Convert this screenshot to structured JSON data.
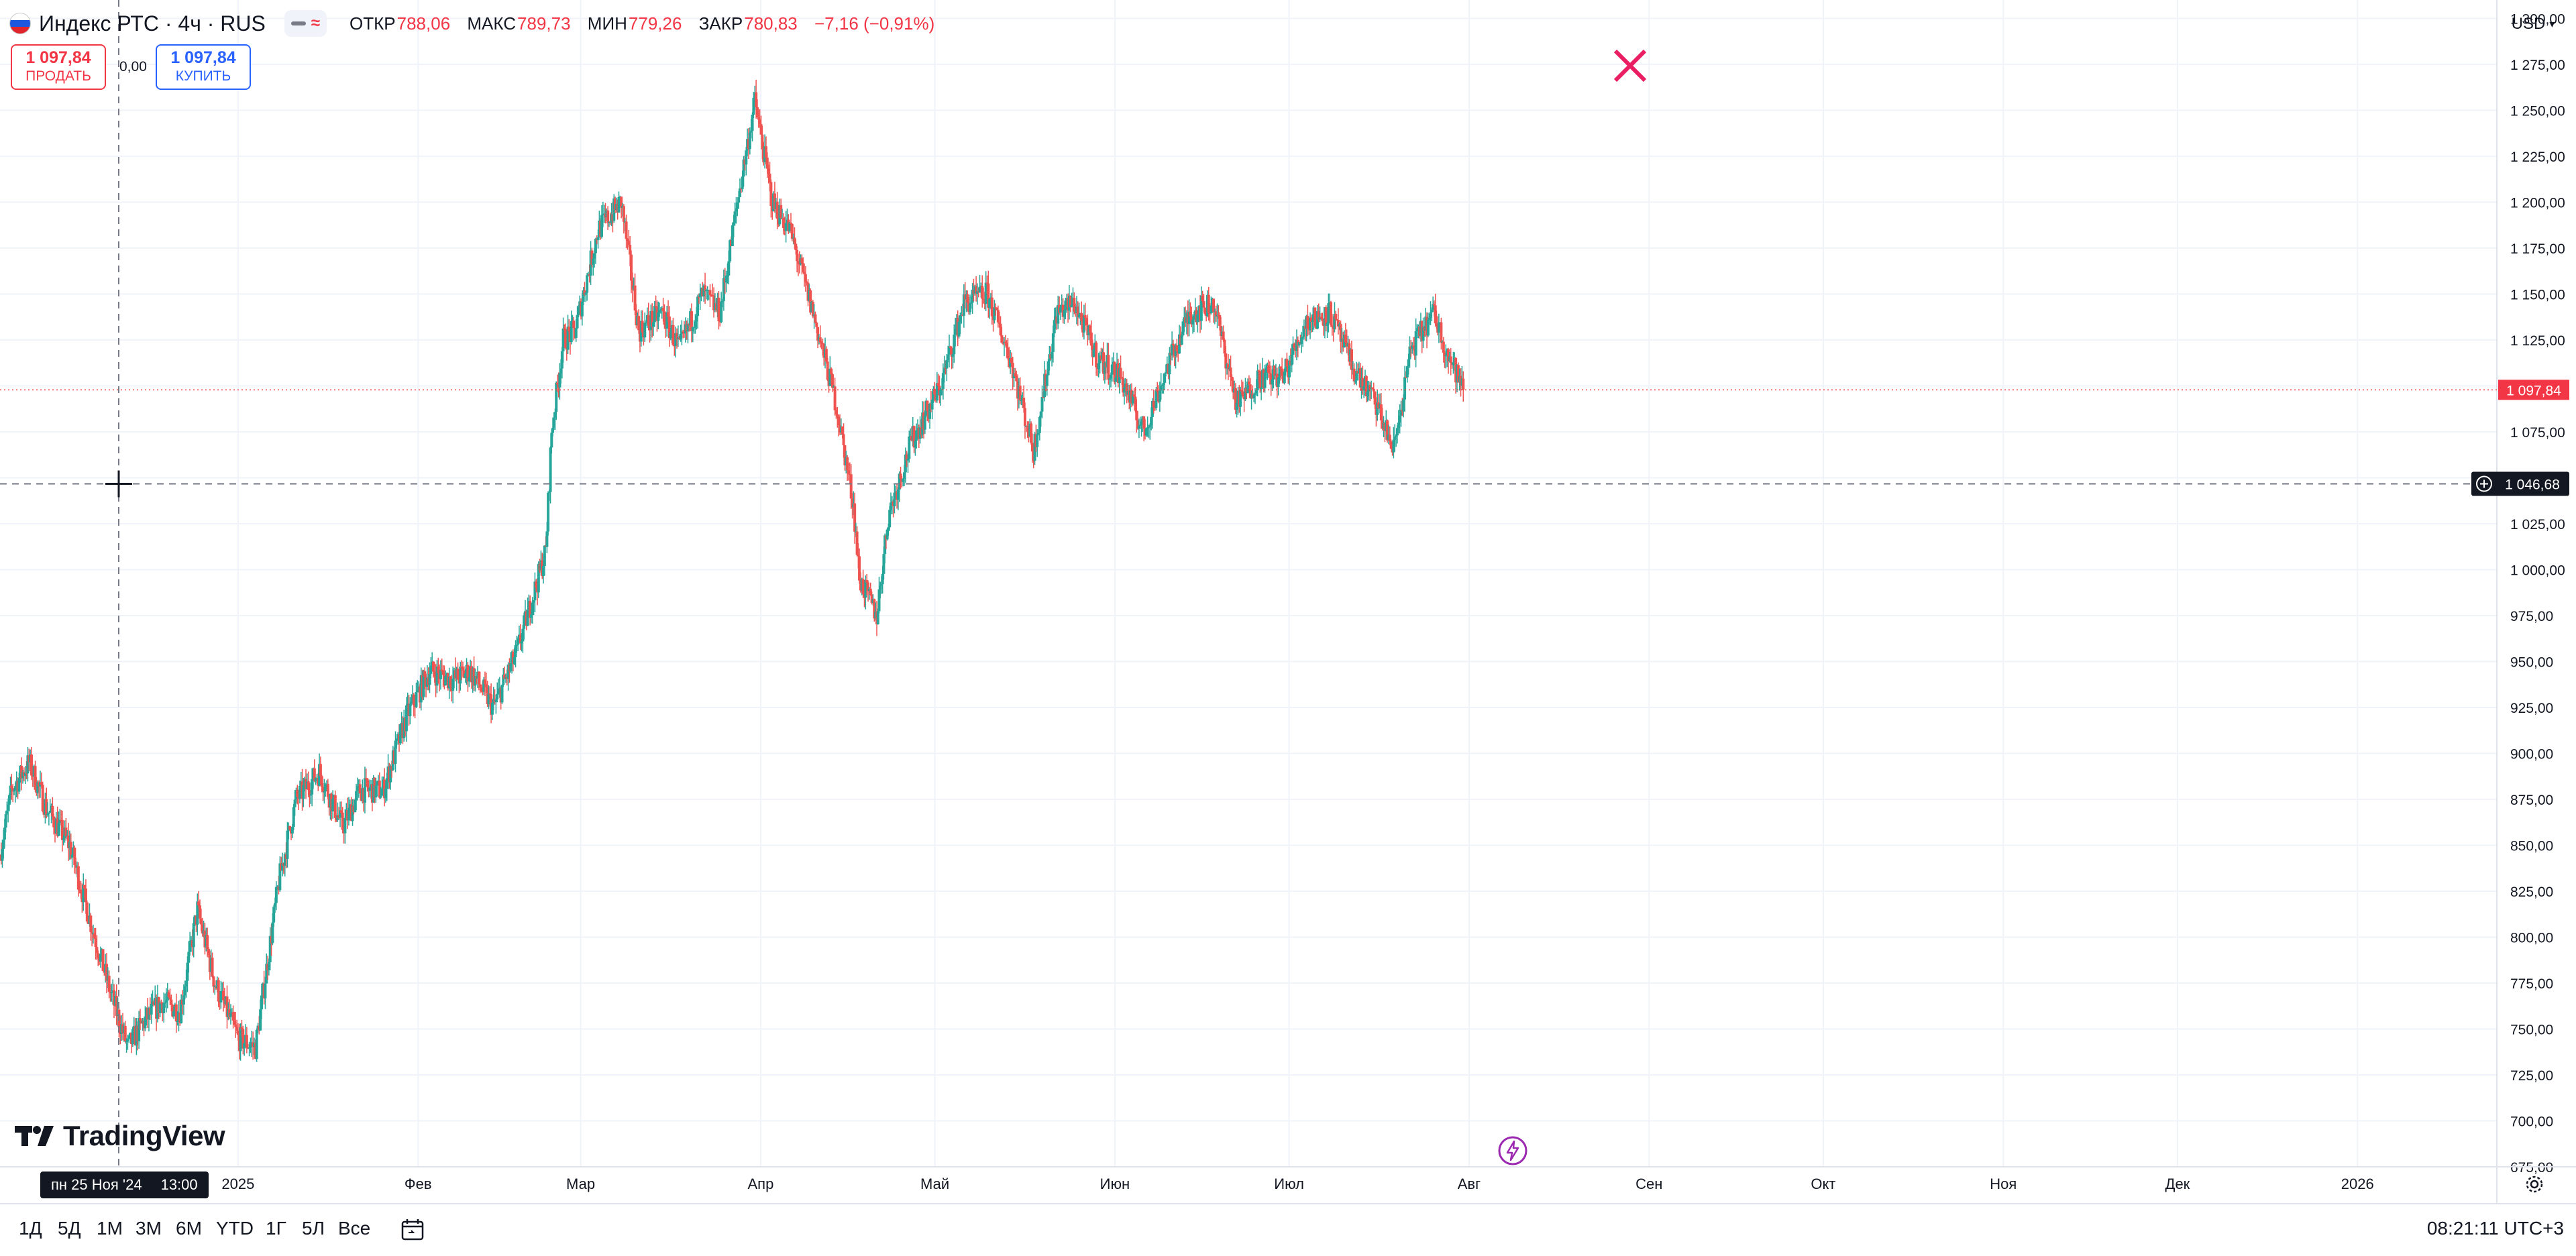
{
  "header": {
    "symbol": "Индекс РТС · 4ч · RUS",
    "flag_colors": [
      "#ffffff",
      "#1c57e0",
      "#e0262c"
    ],
    "indicator_icons": [
      "minus-icon",
      "approx-icon"
    ],
    "ohlc": [
      {
        "label": "ОТКР",
        "value": "788,06"
      },
      {
        "label": "МАКС",
        "value": "789,73"
      },
      {
        "label": "МИН",
        "value": "779,26"
      },
      {
        "label": "ЗАКР",
        "value": "780,83"
      }
    ],
    "change": "−7,16 (−0,91%)"
  },
  "trade": {
    "sell_price": "1 097,84",
    "sell_label": "ПРОДАТЬ",
    "spread": "0,00",
    "buy_price": "1 097,84",
    "buy_label": "КУПИТЬ"
  },
  "currency": "USD",
  "brand": "TradingView",
  "crosshair": {
    "date_label": "пн 25 Ноя '24",
    "time_label": "13:00",
    "price_label": "1 046,68",
    "price": 1046.68
  },
  "last_price": {
    "label": "1 097,84",
    "value": 1097.84
  },
  "toolbar": {
    "ranges": [
      "1Д",
      "5Д",
      "1М",
      "3М",
      "6М",
      "YTD",
      "1Г",
      "5Л",
      "Все"
    ],
    "clock": "08:21:11 UTC+3"
  },
  "colors": {
    "up": "#26a69a",
    "down": "#ef5350",
    "grid": "#f0f3fa",
    "text": "#131722",
    "last_price": "#f23645",
    "marker": "#e91e63",
    "event": "#9c27b0"
  },
  "chart_data": {
    "type": "candlestick",
    "ylim": [
      675,
      1310
    ],
    "y_ticks": [
      675,
      700,
      725,
      750,
      775,
      800,
      825,
      850,
      875,
      900,
      925,
      950,
      975,
      1000,
      1025,
      1050,
      1075,
      1100,
      1125,
      1150,
      1175,
      1200,
      1225,
      1250,
      1275,
      1300
    ],
    "y_tick_labels": [
      "675,00",
      "700,00",
      "725,00",
      "750,00",
      "775,00",
      "800,00",
      "825,00",
      "850,00",
      "875,00",
      "900,00",
      "925,00",
      "950,00",
      "975,00",
      "1 000,00",
      "1 025,00",
      "1 050,00",
      "1 075,00",
      "1 100,00",
      "1 125,00",
      "1 150,00",
      "1 175,00",
      "1 200,00",
      "1 225,00",
      "1 250,00",
      "1 275,00",
      "1 300,00"
    ],
    "x_range": [
      "2024-11-21",
      "2026-01-25"
    ],
    "x_ticks": [
      {
        "date": "2025-01-01",
        "label": "2025"
      },
      {
        "date": "2025-02-01",
        "label": "Фев"
      },
      {
        "date": "2025-03-01",
        "label": "Мар"
      },
      {
        "date": "2025-04-01",
        "label": "Апр"
      },
      {
        "date": "2025-05-01",
        "label": "Май"
      },
      {
        "date": "2025-06-01",
        "label": "Июн"
      },
      {
        "date": "2025-07-01",
        "label": "Июл"
      },
      {
        "date": "2025-08-01",
        "label": "Авг"
      },
      {
        "date": "2025-09-01",
        "label": "Сен"
      },
      {
        "date": "2025-10-01",
        "label": "Окт"
      },
      {
        "date": "2025-11-01",
        "label": "Ноя"
      },
      {
        "date": "2025-12-01",
        "label": "Дек"
      },
      {
        "date": "2026-01-01",
        "label": "2026"
      }
    ],
    "ohlc_anchors": [
      {
        "date": "2024-11-21",
        "close": 845
      },
      {
        "date": "2024-11-23",
        "close": 880
      },
      {
        "date": "2024-11-26",
        "close": 895
      },
      {
        "date": "2024-11-29",
        "close": 870
      },
      {
        "date": "2024-12-03",
        "close": 850
      },
      {
        "date": "2024-12-06",
        "close": 815
      },
      {
        "date": "2024-12-10",
        "close": 770
      },
      {
        "date": "2024-12-13",
        "close": 740
      },
      {
        "date": "2024-12-16",
        "close": 755
      },
      {
        "date": "2024-12-19",
        "close": 765
      },
      {
        "date": "2024-12-22",
        "close": 760
      },
      {
        "date": "2024-12-25",
        "close": 815
      },
      {
        "date": "2024-12-28",
        "close": 775
      },
      {
        "date": "2025-01-01",
        "close": 745
      },
      {
        "date": "2025-01-04",
        "close": 740
      },
      {
        "date": "2025-01-08",
        "close": 830
      },
      {
        "date": "2025-01-11",
        "close": 875
      },
      {
        "date": "2025-01-15",
        "close": 890
      },
      {
        "date": "2025-01-19",
        "close": 860
      },
      {
        "date": "2025-01-22",
        "close": 880
      },
      {
        "date": "2025-01-26",
        "close": 880
      },
      {
        "date": "2025-01-30",
        "close": 920
      },
      {
        "date": "2025-02-03",
        "close": 945
      },
      {
        "date": "2025-02-07",
        "close": 940
      },
      {
        "date": "2025-02-10",
        "close": 945
      },
      {
        "date": "2025-02-14",
        "close": 925
      },
      {
        "date": "2025-02-18",
        "close": 955
      },
      {
        "date": "2025-02-23",
        "close": 1010
      },
      {
        "date": "2025-02-24",
        "close": 1075
      },
      {
        "date": "2025-02-26",
        "close": 1125
      },
      {
        "date": "2025-02-28",
        "close": 1130
      },
      {
        "date": "2025-03-04",
        "close": 1185
      },
      {
        "date": "2025-03-08",
        "close": 1200
      },
      {
        "date": "2025-03-11",
        "close": 1130
      },
      {
        "date": "2025-03-15",
        "close": 1140
      },
      {
        "date": "2025-03-18",
        "close": 1120
      },
      {
        "date": "2025-03-22",
        "close": 1150
      },
      {
        "date": "2025-03-25",
        "close": 1140
      },
      {
        "date": "2025-03-28",
        "close": 1200
      },
      {
        "date": "2025-03-31",
        "close": 1255
      },
      {
        "date": "2025-04-03",
        "close": 1200
      },
      {
        "date": "2025-04-06",
        "close": 1185
      },
      {
        "date": "2025-04-10",
        "close": 1140
      },
      {
        "date": "2025-04-14",
        "close": 1090
      },
      {
        "date": "2025-04-17",
        "close": 1035
      },
      {
        "date": "2025-04-18",
        "close": 995
      },
      {
        "date": "2025-04-21",
        "close": 975
      },
      {
        "date": "2025-04-23",
        "close": 1030
      },
      {
        "date": "2025-04-27",
        "close": 1070
      },
      {
        "date": "2025-05-02",
        "close": 1100
      },
      {
        "date": "2025-05-06",
        "close": 1145
      },
      {
        "date": "2025-05-10",
        "close": 1150
      },
      {
        "date": "2025-05-14",
        "close": 1115
      },
      {
        "date": "2025-05-18",
        "close": 1065
      },
      {
        "date": "2025-05-22",
        "close": 1140
      },
      {
        "date": "2025-05-25",
        "close": 1145
      },
      {
        "date": "2025-05-29",
        "close": 1115
      },
      {
        "date": "2025-06-02",
        "close": 1105
      },
      {
        "date": "2025-06-06",
        "close": 1075
      },
      {
        "date": "2025-06-10",
        "close": 1110
      },
      {
        "date": "2025-06-14",
        "close": 1140
      },
      {
        "date": "2025-06-18",
        "close": 1145
      },
      {
        "date": "2025-06-22",
        "close": 1090
      },
      {
        "date": "2025-06-26",
        "close": 1105
      },
      {
        "date": "2025-06-30",
        "close": 1105
      },
      {
        "date": "2025-07-04",
        "close": 1135
      },
      {
        "date": "2025-07-08",
        "close": 1140
      },
      {
        "date": "2025-07-12",
        "close": 1110
      },
      {
        "date": "2025-07-16",
        "close": 1090
      },
      {
        "date": "2025-07-19",
        "close": 1065
      },
      {
        "date": "2025-07-22",
        "close": 1120
      },
      {
        "date": "2025-07-26",
        "close": 1140
      },
      {
        "date": "2025-07-28",
        "close": 1120
      },
      {
        "date": "2025-07-31",
        "close": 1097.84
      }
    ]
  }
}
